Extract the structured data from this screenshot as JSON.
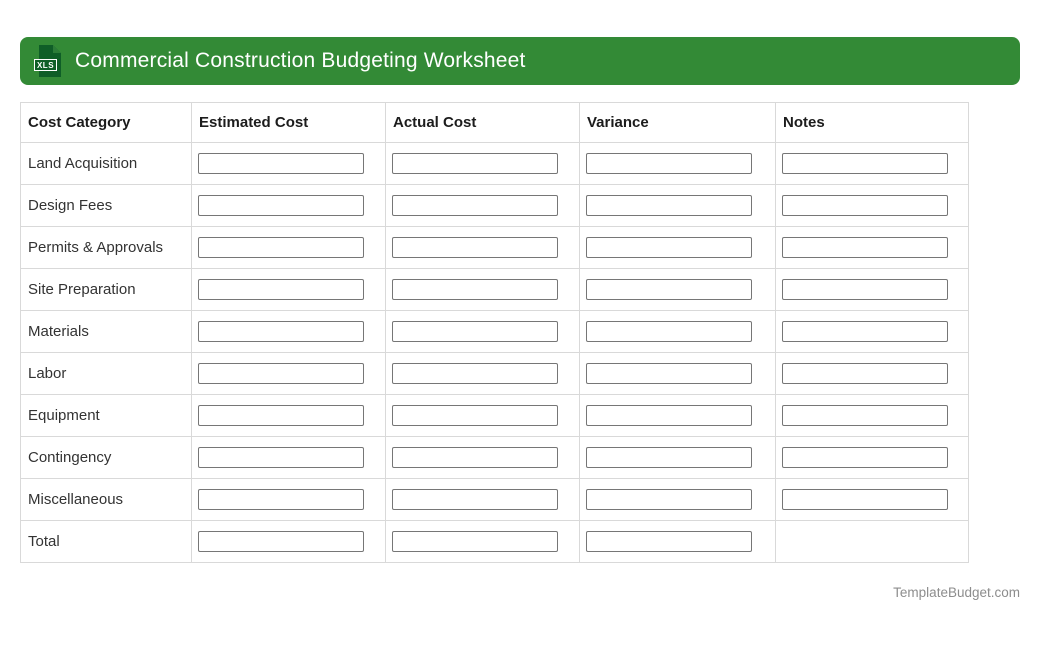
{
  "header": {
    "title": "Commercial Construction Budgeting Worksheet",
    "icon_label": "XLS",
    "banner_color": "#338a36",
    "icon_doc_color": "#0f5e27",
    "icon_fold_color": "#2c7c38"
  },
  "table": {
    "columns": [
      "Cost Category",
      "Estimated Cost",
      "Actual Cost",
      "Variance",
      "Notes"
    ],
    "rows": [
      {
        "label": "Land Acquisition",
        "inputs": [
          true,
          true,
          true,
          true
        ]
      },
      {
        "label": "Design Fees",
        "inputs": [
          true,
          true,
          true,
          true
        ]
      },
      {
        "label": "Permits & Approvals",
        "inputs": [
          true,
          true,
          true,
          true
        ]
      },
      {
        "label": "Site Preparation",
        "inputs": [
          true,
          true,
          true,
          true
        ]
      },
      {
        "label": "Materials",
        "inputs": [
          true,
          true,
          true,
          true
        ]
      },
      {
        "label": "Labor",
        "inputs": [
          true,
          true,
          true,
          true
        ]
      },
      {
        "label": "Equipment",
        "inputs": [
          true,
          true,
          true,
          true
        ]
      },
      {
        "label": "Contingency",
        "inputs": [
          true,
          true,
          true,
          true
        ]
      },
      {
        "label": "Miscellaneous",
        "inputs": [
          true,
          true,
          true,
          true
        ]
      },
      {
        "label": "Total",
        "inputs": [
          true,
          true,
          true,
          false
        ]
      }
    ],
    "input_value": "",
    "input_placeholder": ""
  },
  "footer": {
    "site": "TemplateBudget.com"
  }
}
